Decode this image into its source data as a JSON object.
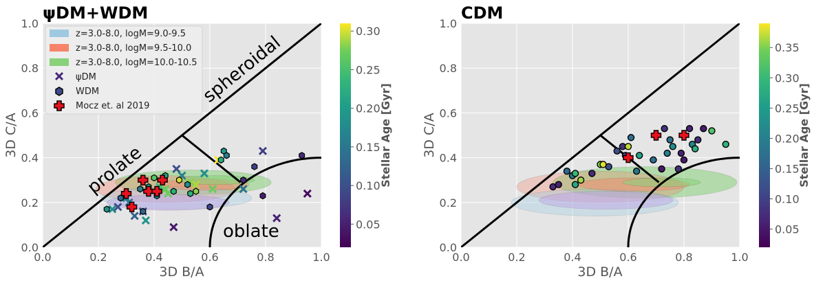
{
  "colors": {
    "panel_bg": "#e5e5e5",
    "grid": "#ffffff",
    "blue": "#9ecae1",
    "orange": "#f6846a",
    "green": "#88d27a",
    "violet": "#bca0e6",
    "outline": "#000000",
    "moocz_fill": "#e8121f"
  },
  "chart_data": [
    {
      "type": "scatter",
      "title": "ψDM+WDM",
      "xlabel": "3D B/A",
      "ylabel": "3D C/A",
      "xlim": [
        0,
        1
      ],
      "ylim": [
        0,
        1
      ],
      "xticks": [
        "0.0",
        "0.2",
        "0.4",
        "0.6",
        "0.8",
        "1.0"
      ],
      "yticks": [
        "0.0",
        "0.2",
        "0.4",
        "0.6",
        "0.8",
        "1.0"
      ],
      "colorbar": {
        "label": "Stellar Age [Gyr]",
        "min": 0.02,
        "max": 0.31,
        "ticks": [
          "0.05",
          "0.10",
          "0.15",
          "0.20",
          "0.25",
          "0.30"
        ]
      },
      "annotations": [
        "spheroidal",
        "prolate",
        "oblate"
      ],
      "legend": [
        {
          "label": "z=3.0-8.0, logM=9.0-9.5",
          "kind": "patch",
          "color": "#9ecae1"
        },
        {
          "label": "z=3.0-8.0, logM=9.5-10.0",
          "kind": "patch",
          "color": "#f6846a"
        },
        {
          "label": "z=3.0-8.0, logM=10.0-10.5",
          "kind": "patch",
          "color": "#88d27a"
        },
        {
          "label": "ψDM",
          "kind": "x"
        },
        {
          "label": "WDM",
          "kind": "hex"
        },
        {
          "label": "Mocz et. al 2019",
          "kind": "plus"
        }
      ],
      "psiDM": [
        [
          0.25,
          0.17
        ],
        [
          0.27,
          0.18
        ],
        [
          0.3,
          0.22
        ],
        [
          0.31,
          0.2
        ],
        [
          0.33,
          0.14
        ],
        [
          0.36,
          0.16
        ],
        [
          0.37,
          0.12
        ],
        [
          0.42,
          0.27
        ],
        [
          0.44,
          0.26
        ],
        [
          0.45,
          0.24
        ],
        [
          0.47,
          0.09
        ],
        [
          0.48,
          0.35
        ],
        [
          0.5,
          0.32
        ],
        [
          0.53,
          0.29
        ],
        [
          0.55,
          0.28
        ],
        [
          0.58,
          0.33
        ],
        [
          0.61,
          0.26
        ],
        [
          0.63,
          0.39
        ],
        [
          0.72,
          0.26
        ],
        [
          0.79,
          0.43
        ],
        [
          0.84,
          0.13
        ],
        [
          0.95,
          0.24
        ]
      ],
      "psiDM_age": [
        0.18,
        0.1,
        0.17,
        0.15,
        0.12,
        0.1,
        0.19,
        0.24,
        0.27,
        0.27,
        0.04,
        0.1,
        0.16,
        0.28,
        0.29,
        0.18,
        0.27,
        0.31,
        0.14,
        0.08,
        0.05,
        0.03
      ],
      "wdm": [
        [
          0.23,
          0.17
        ],
        [
          0.28,
          0.22
        ],
        [
          0.35,
          0.26
        ],
        [
          0.36,
          0.16
        ],
        [
          0.38,
          0.27
        ],
        [
          0.4,
          0.31
        ],
        [
          0.41,
          0.23
        ],
        [
          0.44,
          0.32
        ],
        [
          0.47,
          0.25
        ],
        [
          0.49,
          0.3
        ],
        [
          0.52,
          0.28
        ],
        [
          0.53,
          0.24
        ],
        [
          0.55,
          0.25
        ],
        [
          0.6,
          0.18
        ],
        [
          0.64,
          0.39
        ],
        [
          0.65,
          0.43
        ],
        [
          0.66,
          0.41
        ],
        [
          0.72,
          0.3
        ],
        [
          0.76,
          0.36
        ],
        [
          0.79,
          0.23
        ],
        [
          0.93,
          0.41
        ]
      ],
      "wdm_age": [
        0.19,
        0.13,
        0.16,
        0.12,
        0.21,
        0.26,
        0.18,
        0.21,
        0.23,
        0.3,
        0.18,
        0.23,
        0.28,
        0.09,
        0.22,
        0.2,
        0.16,
        0.06,
        0.08,
        0.05,
        0.06
      ],
      "mocz": [
        [
          0.3,
          0.24
        ],
        [
          0.32,
          0.18
        ],
        [
          0.36,
          0.3
        ],
        [
          0.38,
          0.25
        ],
        [
          0.41,
          0.25
        ],
        [
          0.43,
          0.3
        ]
      ]
    },
    {
      "type": "scatter",
      "title": "CDM",
      "xlabel": "3D B/A",
      "ylabel": "3D C/A",
      "xlim": [
        0,
        1
      ],
      "ylim": [
        0,
        1
      ],
      "xticks": [
        "0.0",
        "0.2",
        "0.4",
        "0.6",
        "0.8",
        "1.0"
      ],
      "yticks": [
        "0.0",
        "0.2",
        "0.4",
        "0.6",
        "0.8",
        "1.0"
      ],
      "colorbar": {
        "label": "Stellar Age [Gyr]",
        "min": 0.02,
        "max": 0.39,
        "ticks": [
          "0.05",
          "0.10",
          "0.15",
          "0.20",
          "0.25",
          "0.30",
          "0.35"
        ]
      },
      "cdm": [
        [
          0.33,
          0.27
        ],
        [
          0.35,
          0.28
        ],
        [
          0.38,
          0.34
        ],
        [
          0.4,
          0.32
        ],
        [
          0.41,
          0.33
        ],
        [
          0.41,
          0.28
        ],
        [
          0.43,
          0.3
        ],
        [
          0.47,
          0.33
        ],
        [
          0.5,
          0.37
        ],
        [
          0.51,
          0.37
        ],
        [
          0.53,
          0.36
        ],
        [
          0.56,
          0.43
        ],
        [
          0.58,
          0.45
        ],
        [
          0.59,
          0.41
        ],
        [
          0.6,
          0.45
        ],
        [
          0.61,
          0.49
        ],
        [
          0.63,
          0.34
        ],
        [
          0.64,
          0.41
        ],
        [
          0.69,
          0.39
        ],
        [
          0.72,
          0.35
        ],
        [
          0.73,
          0.53
        ],
        [
          0.74,
          0.42
        ],
        [
          0.75,
          0.48
        ],
        [
          0.76,
          0.45
        ],
        [
          0.78,
          0.35
        ],
        [
          0.79,
          0.42
        ],
        [
          0.8,
          0.39
        ],
        [
          0.82,
          0.53
        ],
        [
          0.83,
          0.46
        ],
        [
          0.84,
          0.44
        ],
        [
          0.85,
          0.48
        ],
        [
          0.87,
          0.53
        ],
        [
          0.9,
          0.52
        ],
        [
          0.95,
          0.46
        ]
      ],
      "cdm_age": [
        0.07,
        0.06,
        0.16,
        0.2,
        0.3,
        0.27,
        0.36,
        0.07,
        0.35,
        0.38,
        0.12,
        0.12,
        0.08,
        0.1,
        0.37,
        0.17,
        0.18,
        0.26,
        0.17,
        0.05,
        0.08,
        0.2,
        0.17,
        0.22,
        0.08,
        0.06,
        0.05,
        0.06,
        0.21,
        0.28,
        0.07,
        0.05,
        0.32,
        0.29
      ],
      "mocz": [
        [
          0.6,
          0.4
        ],
        [
          0.7,
          0.5
        ],
        [
          0.8,
          0.5
        ]
      ]
    }
  ]
}
